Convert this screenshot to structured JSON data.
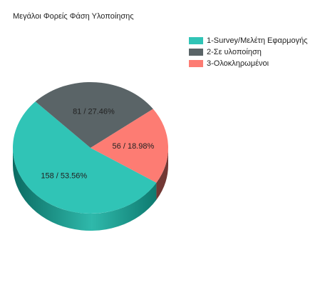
{
  "chart_data": {
    "type": "pie",
    "title": "Μεγάλοι Φορείς Φάση Υλοποίησης",
    "categories": [
      "1-Survey/Μελέτη Εφαρμογής",
      "2-Σε υλοποίηση",
      "3-Ολοκληρωμένοι"
    ],
    "values": [
      158,
      81,
      56
    ],
    "value_labels": [
      "158 /  53.56%",
      "81 /  27.46%",
      "56 /  18.98%"
    ],
    "colors": [
      "#30c4b6",
      "#5a6467",
      "#fd7c73"
    ],
    "legend": "top-right"
  }
}
